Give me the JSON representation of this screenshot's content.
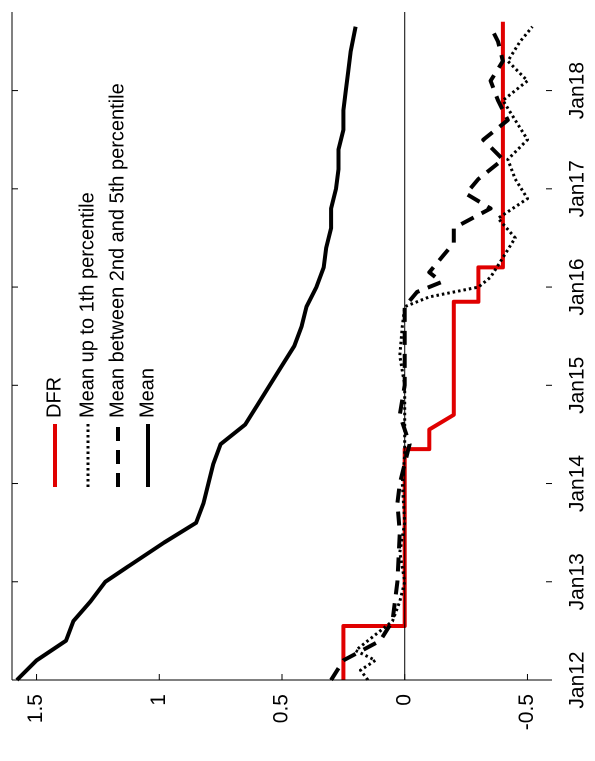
{
  "chart_data": {
    "type": "line",
    "orientation": "rotated-90-ccw",
    "xlim": [
      2012.0,
      2018.8
    ],
    "ylim": [
      -0.6,
      1.6
    ],
    "x_ticks": [
      {
        "value": 2012,
        "label": "Jan12"
      },
      {
        "value": 2013,
        "label": "Jan13"
      },
      {
        "value": 2014,
        "label": "Jan14"
      },
      {
        "value": 2015,
        "label": "Jan15"
      },
      {
        "value": 2016,
        "label": "Jan16"
      },
      {
        "value": 2017,
        "label": "Jan17"
      },
      {
        "value": 2018,
        "label": "Jan18"
      }
    ],
    "y_ticks": [
      {
        "value": 1.5,
        "label": "1.5"
      },
      {
        "value": 1,
        "label": "1"
      },
      {
        "value": 0.5,
        "label": "0.5"
      },
      {
        "value": 0,
        "label": "0"
      },
      {
        "value": -0.5,
        "label": "-0.5"
      }
    ],
    "zero_line": true,
    "legend_position": "top-left",
    "series": [
      {
        "name": "DFR",
        "color": "#e00000",
        "style": "solid",
        "x": [
          2012.0,
          2012.45,
          2012.45,
          2012.55,
          2012.55,
          2014.35,
          2014.35,
          2014.55,
          2014.55,
          2014.7,
          2014.7,
          2015.85,
          2015.85,
          2016.0,
          2016.0,
          2016.2,
          2016.2,
          2018.7
        ],
        "y": [
          0.25,
          0.25,
          0.25,
          0.25,
          0.0,
          0.0,
          -0.1,
          -0.1,
          -0.1,
          -0.2,
          -0.2,
          -0.2,
          -0.3,
          -0.3,
          -0.3,
          -0.3,
          -0.4,
          -0.4
        ]
      },
      {
        "name": "Mean up to 1th percentile",
        "color": "#000000",
        "style": "dotted",
        "x": [
          2012.0,
          2012.1,
          2012.2,
          2012.3,
          2012.4,
          2012.5,
          2012.6,
          2012.8,
          2013.0,
          2013.3,
          2013.6,
          2014.0,
          2014.3,
          2014.6,
          2015.0,
          2015.3,
          2015.6,
          2015.8,
          2015.9,
          2016.0,
          2016.1,
          2016.3,
          2016.5,
          2016.7,
          2016.9,
          2017.1,
          2017.3,
          2017.5,
          2017.7,
          2017.9,
          2018.1,
          2018.3,
          2018.5,
          2018.65
        ],
        "y": [
          0.15,
          0.18,
          0.12,
          0.2,
          0.15,
          0.1,
          0.05,
          0.02,
          0.0,
          0.02,
          0.0,
          0.01,
          0.0,
          0.0,
          0.0,
          0.02,
          0.01,
          0.0,
          -0.1,
          -0.3,
          -0.35,
          -0.4,
          -0.45,
          -0.38,
          -0.5,
          -0.45,
          -0.42,
          -0.5,
          -0.45,
          -0.4,
          -0.5,
          -0.42,
          -0.47,
          -0.52
        ]
      },
      {
        "name": "Mean between 2nd and 5th percentile",
        "color": "#000000",
        "style": "dashed",
        "x": [
          2012.0,
          2012.2,
          2012.4,
          2012.6,
          2013.0,
          2013.5,
          2013.8,
          2014.0,
          2014.2,
          2014.4,
          2014.7,
          2015.0,
          2015.5,
          2015.8,
          2015.95,
          2016.05,
          2016.15,
          2016.3,
          2016.45,
          2016.6,
          2016.8,
          2016.95,
          2017.1,
          2017.3,
          2017.5,
          2017.7,
          2017.9,
          2018.1,
          2018.3,
          2018.5,
          2018.65
        ],
        "y": [
          0.3,
          0.25,
          0.1,
          0.05,
          0.03,
          0.02,
          0.03,
          0.02,
          0.0,
          -0.02,
          0.02,
          0.0,
          0.0,
          0.0,
          -0.05,
          -0.15,
          -0.1,
          -0.15,
          -0.2,
          -0.2,
          -0.35,
          -0.25,
          -0.3,
          -0.4,
          -0.32,
          -0.42,
          -0.38,
          -0.35,
          -0.4,
          -0.38,
          -0.35
        ]
      },
      {
        "name": "Mean",
        "color": "#000000",
        "style": "solid",
        "x": [
          2012.0,
          2012.2,
          2012.4,
          2012.6,
          2012.8,
          2013.0,
          2013.2,
          2013.4,
          2013.6,
          2013.8,
          2014.0,
          2014.2,
          2014.4,
          2014.6,
          2014.8,
          2015.0,
          2015.2,
          2015.4,
          2015.6,
          2015.8,
          2016.0,
          2016.2,
          2016.4,
          2016.6,
          2016.8,
          2017.0,
          2017.2,
          2017.4,
          2017.6,
          2017.8,
          2018.0,
          2018.2,
          2018.4,
          2018.65
        ],
        "y": [
          1.58,
          1.5,
          1.38,
          1.35,
          1.28,
          1.22,
          1.1,
          0.98,
          0.85,
          0.82,
          0.8,
          0.78,
          0.75,
          0.65,
          0.6,
          0.55,
          0.5,
          0.45,
          0.42,
          0.4,
          0.36,
          0.33,
          0.32,
          0.3,
          0.3,
          0.28,
          0.27,
          0.27,
          0.25,
          0.25,
          0.24,
          0.23,
          0.22,
          0.2
        ]
      }
    ]
  }
}
